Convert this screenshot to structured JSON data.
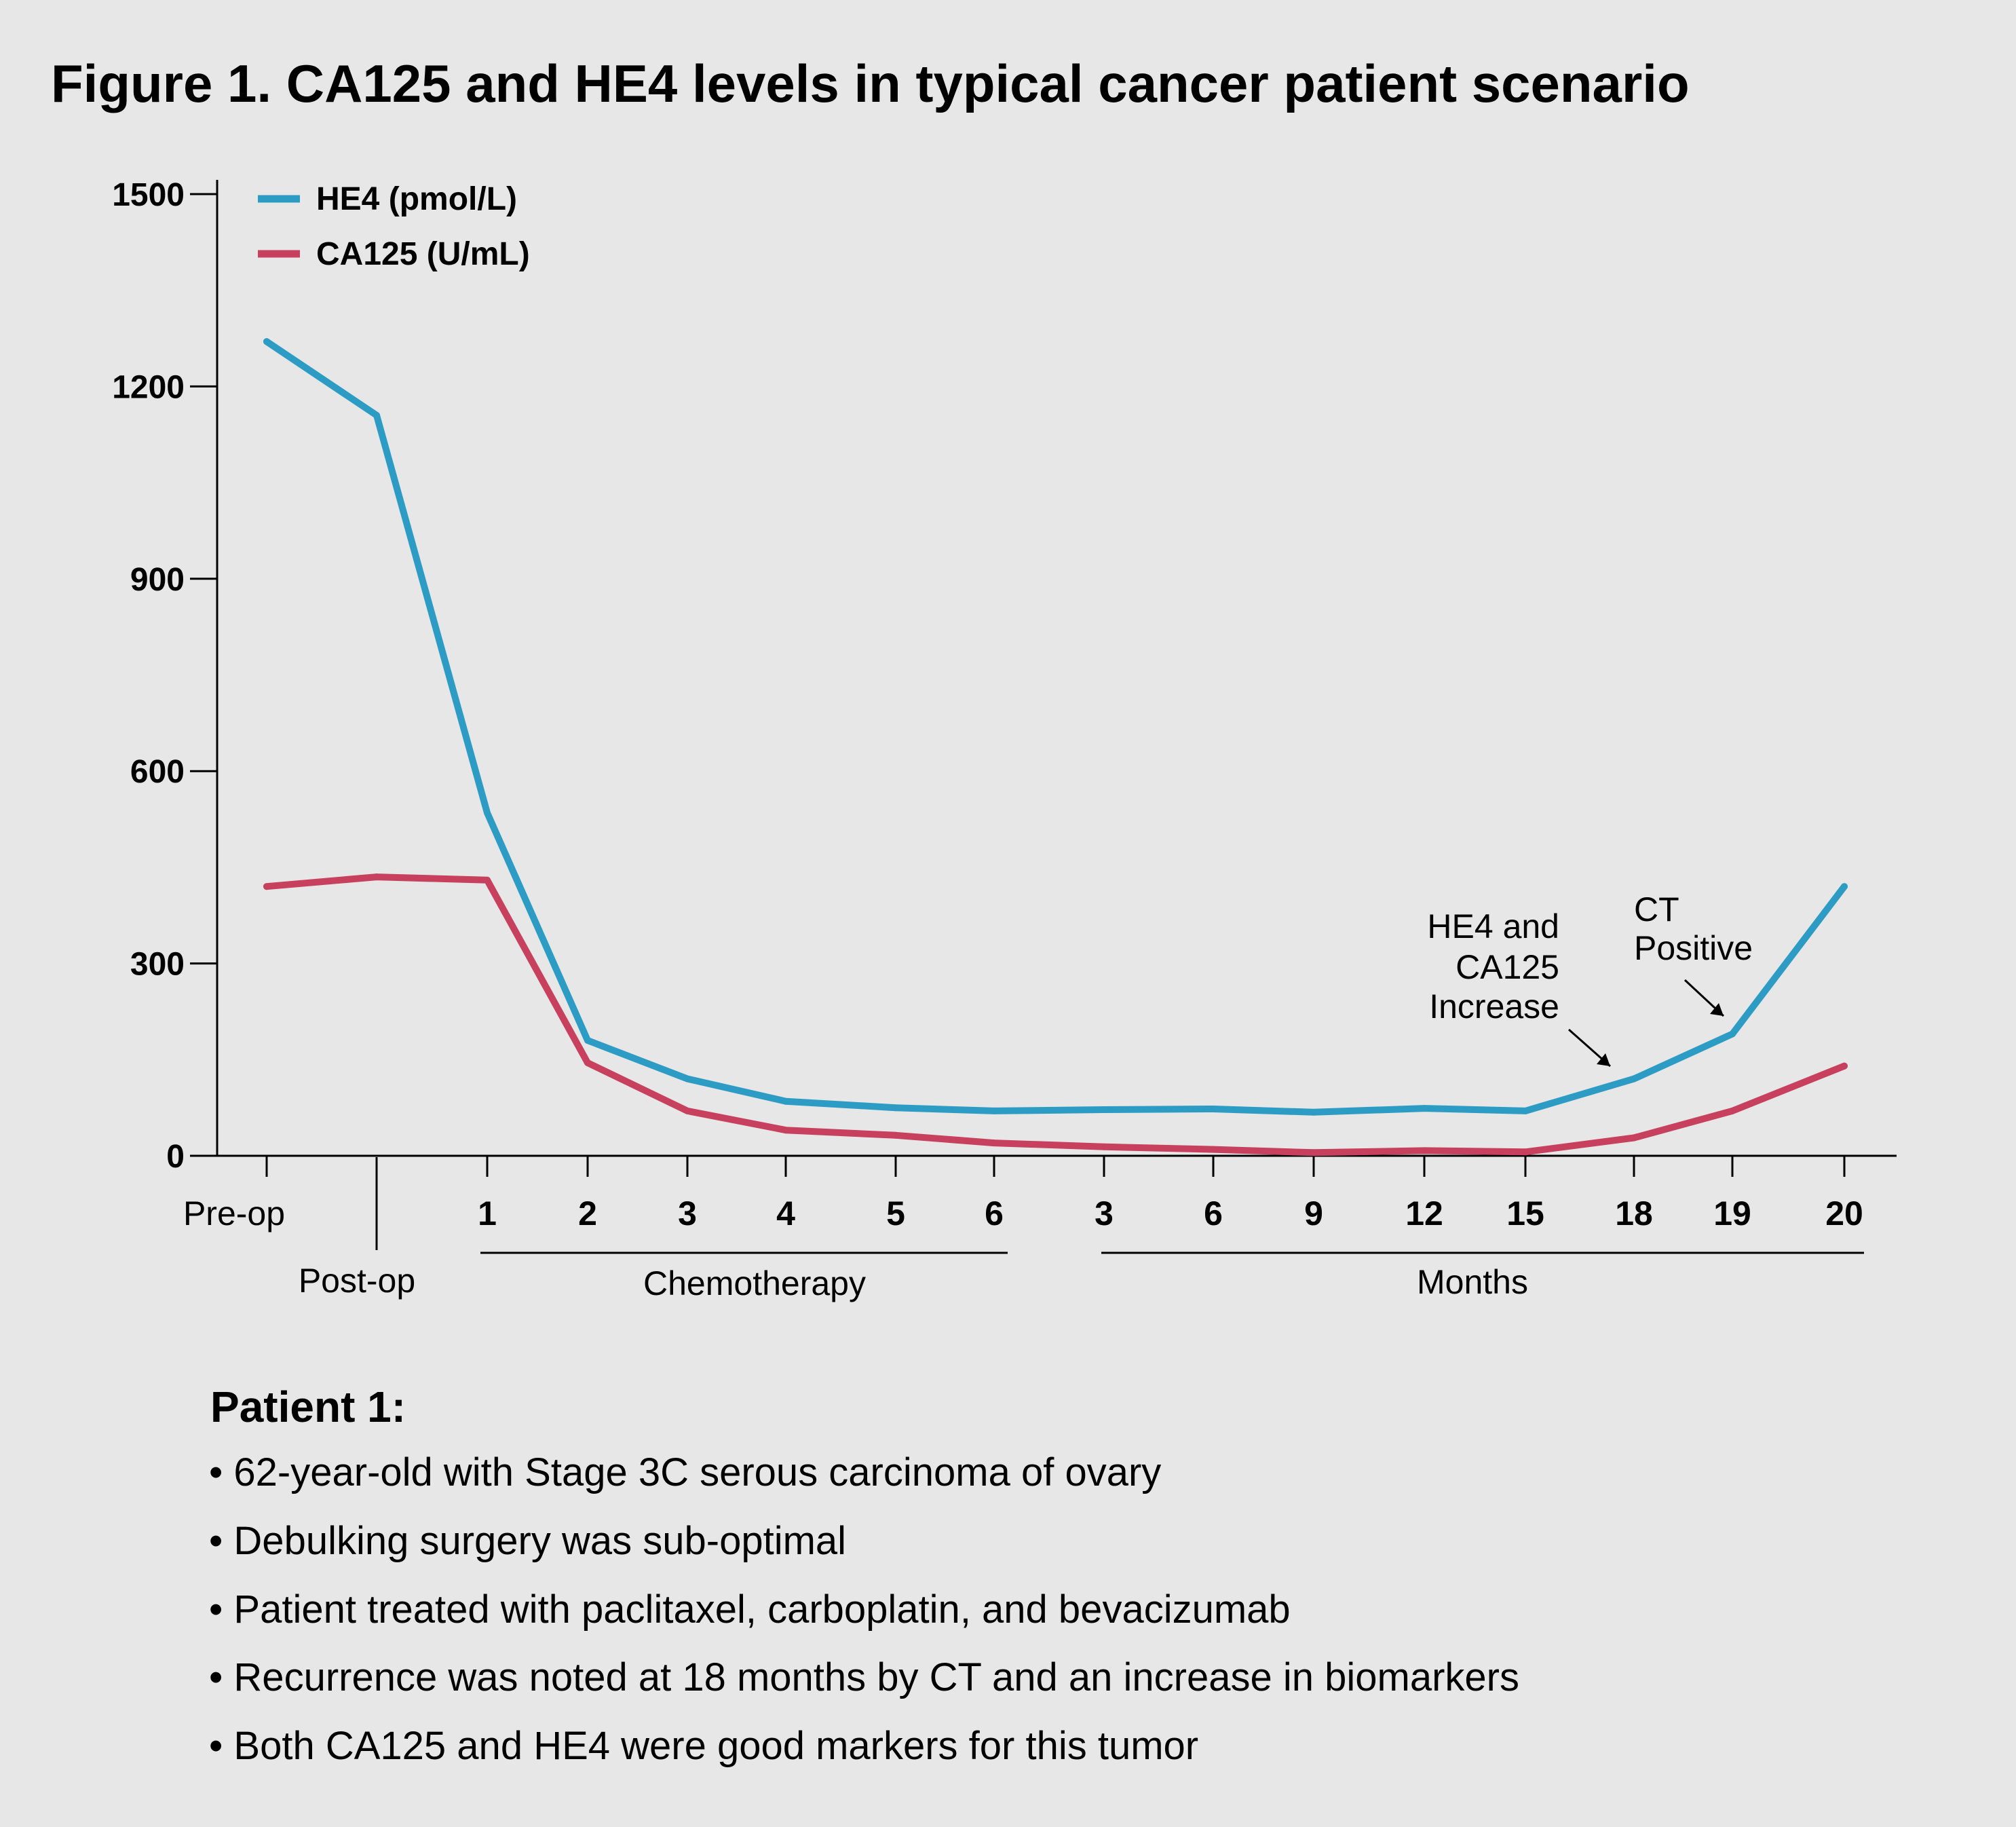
{
  "figure": {
    "title": "Figure 1. CA125 and HE4 levels in typical cancer patient scenario"
  },
  "chart_data": {
    "type": "line",
    "title": "Figure 1. CA125 and HE4 levels in typical cancer patient scenario",
    "xlabel": "",
    "ylabel": "",
    "ylim": [
      0,
      1500
    ],
    "y_ticks": [
      "0",
      "300",
      "600",
      "900",
      "1200",
      "1500"
    ],
    "categories": [
      "Pre-op",
      "Post-op",
      "1",
      "2",
      "3",
      "4",
      "5",
      "6",
      "3",
      "6",
      "9",
      "12",
      "15",
      "18",
      "19",
      "20"
    ],
    "x_tick_labels": [
      "Pre-op",
      "1",
      "2",
      "3",
      "4",
      "5",
      "6",
      "3",
      "6",
      "9",
      "12",
      "15",
      "18",
      "19",
      "20"
    ],
    "x_group_labels": {
      "post_op": "Post-op",
      "chemotherapy": "Chemotherapy",
      "months": "Months"
    },
    "series": [
      {
        "name": "HE4 (pmol/L)",
        "color": "#2d9cc4",
        "values": [
          1270,
          1155,
          535,
          180,
          120,
          85,
          75,
          70,
          72,
          73,
          68,
          74,
          70,
          120,
          190,
          420
        ]
      },
      {
        "name": "CA125 (U/mL)",
        "color": "#c7415e",
        "values": [
          420,
          435,
          430,
          145,
          70,
          40,
          32,
          20,
          14,
          10,
          5,
          8,
          6,
          28,
          70,
          140
        ]
      }
    ],
    "legend": {
      "position": "top-left"
    },
    "annotations": [
      {
        "lines": [
          "HE4 and",
          "CA125",
          "Increase"
        ]
      },
      {
        "lines": [
          "CT",
          "Positive"
        ]
      }
    ],
    "grid": false
  },
  "notes": {
    "heading": "Patient 1:",
    "bullets": [
      "• 62-year-old with Stage 3C serous carcinoma of ovary",
      "• Debulking surgery was sub-optimal",
      "• Patient treated with paclitaxel, carboplatin, and bevacizumab",
      "• Recurrence was noted at 18 months by CT and an increase in biomarkers",
      "• Both CA125 and HE4 were good markers for this tumor"
    ]
  }
}
